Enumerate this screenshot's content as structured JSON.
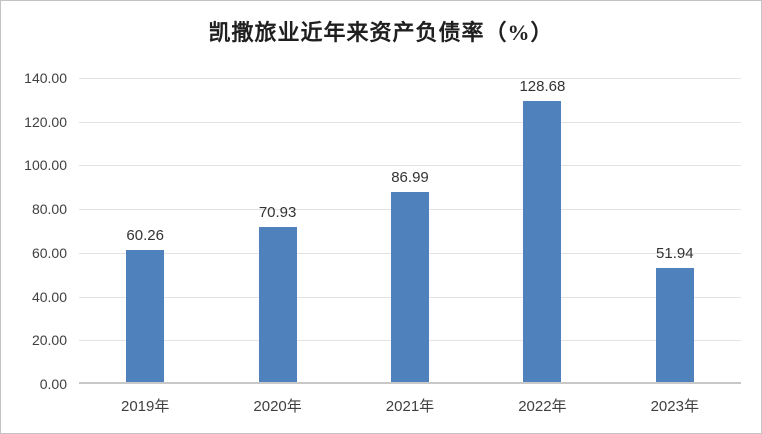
{
  "chart_data": {
    "type": "bar",
    "title": "凯撒旅业近年来资产负债率（%）",
    "categories": [
      "2019年",
      "2020年",
      "2021年",
      "2022年",
      "2023年"
    ],
    "values": [
      60.26,
      70.93,
      86.99,
      128.68,
      51.94
    ],
    "value_labels": [
      "60.26",
      "70.93",
      "86.99",
      "128.68",
      "51.94"
    ],
    "xlabel": "",
    "ylabel": "",
    "ylim": [
      0,
      140
    ],
    "ytick_step": 20,
    "yticks": [
      "140.00",
      "120.00",
      "100.00",
      "80.00",
      "60.00",
      "40.00",
      "20.00",
      "0.00"
    ],
    "grid": true,
    "legend_position": "none",
    "bar_color": "#4f81bd",
    "gridline_color": "#e3e3e3",
    "axis_line_color": "#c8c8c8",
    "tick_text_color": "#404040",
    "label_text_color": "#333333",
    "title_color": "#1f1f1f",
    "frame_border_color": "#c3c3c3"
  }
}
